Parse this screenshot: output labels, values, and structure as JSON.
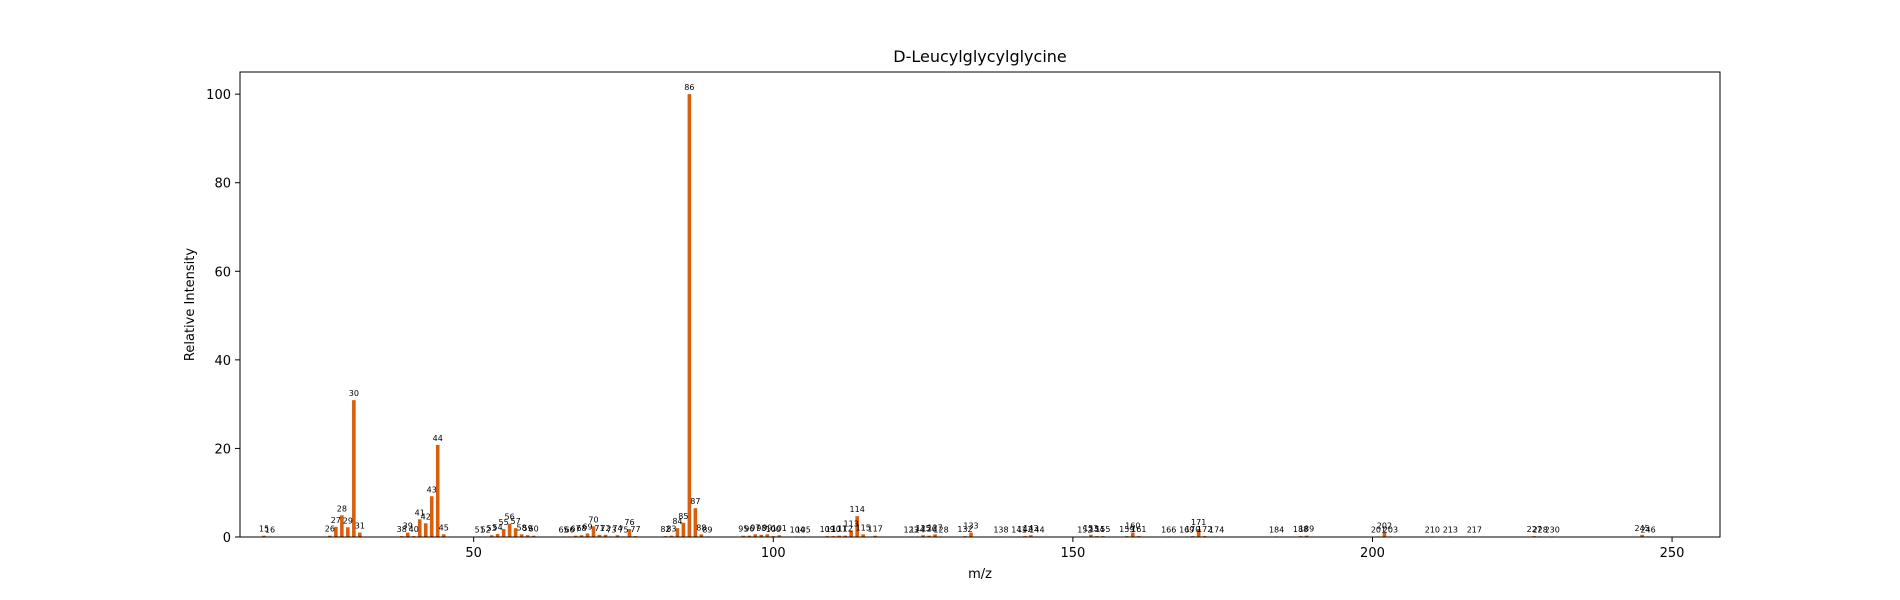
{
  "chart_data": {
    "type": "bar",
    "title": "D-Leucylglycylglycine",
    "xlabel": "m/z",
    "ylabel": "Relative Intensity",
    "xlim": [
      11,
      258
    ],
    "ylim": [
      0,
      105
    ],
    "xticks": [
      50,
      100,
      150,
      200,
      250
    ],
    "yticks": [
      0,
      20,
      40,
      60,
      80,
      100
    ],
    "grid": false,
    "bar_color": "#d95f0e",
    "peaks": [
      {
        "x": 15,
        "y": 0.3
      },
      {
        "x": 16,
        "y": 0.1
      },
      {
        "x": 26,
        "y": 0.3
      },
      {
        "x": 27,
        "y": 2.3
      },
      {
        "x": 28,
        "y": 4.9
      },
      {
        "x": 29,
        "y": 2.2
      },
      {
        "x": 30,
        "y": 30.9
      },
      {
        "x": 31,
        "y": 1.0
      },
      {
        "x": 38,
        "y": 0.2
      },
      {
        "x": 39,
        "y": 1.0
      },
      {
        "x": 40,
        "y": 0.2
      },
      {
        "x": 41,
        "y": 4.0
      },
      {
        "x": 42,
        "y": 3.1
      },
      {
        "x": 43,
        "y": 9.2
      },
      {
        "x": 44,
        "y": 20.8
      },
      {
        "x": 45,
        "y": 0.6
      },
      {
        "x": 51,
        "y": 0.1
      },
      {
        "x": 52,
        "y": 0.1
      },
      {
        "x": 53,
        "y": 0.4
      },
      {
        "x": 54,
        "y": 0.7
      },
      {
        "x": 55,
        "y": 1.8
      },
      {
        "x": 56,
        "y": 3.0
      },
      {
        "x": 57,
        "y": 2.0
      },
      {
        "x": 58,
        "y": 0.6
      },
      {
        "x": 59,
        "y": 0.4
      },
      {
        "x": 60,
        "y": 0.3
      },
      {
        "x": 65,
        "y": 0.1
      },
      {
        "x": 66,
        "y": 0.1
      },
      {
        "x": 67,
        "y": 0.3
      },
      {
        "x": 68,
        "y": 0.4
      },
      {
        "x": 69,
        "y": 0.8
      },
      {
        "x": 70,
        "y": 2.4
      },
      {
        "x": 71,
        "y": 0.5
      },
      {
        "x": 72,
        "y": 0.5
      },
      {
        "x": 73,
        "y": 0.1
      },
      {
        "x": 74,
        "y": 0.4
      },
      {
        "x": 75,
        "y": 0.1
      },
      {
        "x": 76,
        "y": 1.8
      },
      {
        "x": 77,
        "y": 0.2
      },
      {
        "x": 82,
        "y": 0.2
      },
      {
        "x": 83,
        "y": 0.3
      },
      {
        "x": 84,
        "y": 2.0
      },
      {
        "x": 85,
        "y": 3.2
      },
      {
        "x": 86,
        "y": 100
      },
      {
        "x": 87,
        "y": 6.5
      },
      {
        "x": 88,
        "y": 0.6
      },
      {
        "x": 89,
        "y": 0.1
      },
      {
        "x": 95,
        "y": 0.3
      },
      {
        "x": 96,
        "y": 0.3
      },
      {
        "x": 97,
        "y": 0.6
      },
      {
        "x": 98,
        "y": 0.5
      },
      {
        "x": 99,
        "y": 0.6
      },
      {
        "x": 100,
        "y": 0.2
      },
      {
        "x": 101,
        "y": 0.4
      },
      {
        "x": 104,
        "y": 0.1
      },
      {
        "x": 105,
        "y": 0.1
      },
      {
        "x": 109,
        "y": 0.2
      },
      {
        "x": 110,
        "y": 0.2
      },
      {
        "x": 111,
        "y": 0.3
      },
      {
        "x": 112,
        "y": 0.3
      },
      {
        "x": 113,
        "y": 1.5
      },
      {
        "x": 114,
        "y": 4.7
      },
      {
        "x": 115,
        "y": 0.6
      },
      {
        "x": 117,
        "y": 0.3
      },
      {
        "x": 123,
        "y": 0.1
      },
      {
        "x": 124,
        "y": 0.1
      },
      {
        "x": 125,
        "y": 0.4
      },
      {
        "x": 126,
        "y": 0.3
      },
      {
        "x": 127,
        "y": 0.6
      },
      {
        "x": 128,
        "y": 0.1
      },
      {
        "x": 132,
        "y": 0.2
      },
      {
        "x": 133,
        "y": 1.0
      },
      {
        "x": 138,
        "y": 0.1
      },
      {
        "x": 141,
        "y": 0.1
      },
      {
        "x": 142,
        "y": 0.2
      },
      {
        "x": 143,
        "y": 0.4
      },
      {
        "x": 144,
        "y": 0.1
      },
      {
        "x": 152,
        "y": 0.1
      },
      {
        "x": 153,
        "y": 0.5
      },
      {
        "x": 154,
        "y": 0.2
      },
      {
        "x": 155,
        "y": 0.2
      },
      {
        "x": 159,
        "y": 0.2
      },
      {
        "x": 160,
        "y": 1.0
      },
      {
        "x": 161,
        "y": 0.2
      },
      {
        "x": 166,
        "y": 0.1
      },
      {
        "x": 169,
        "y": 0.1
      },
      {
        "x": 170,
        "y": 0.2
      },
      {
        "x": 171,
        "y": 1.8
      },
      {
        "x": 172,
        "y": 0.2
      },
      {
        "x": 174,
        "y": 0.1
      },
      {
        "x": 184,
        "y": 0.1
      },
      {
        "x": 188,
        "y": 0.2
      },
      {
        "x": 189,
        "y": 0.3
      },
      {
        "x": 201,
        "y": 0.1
      },
      {
        "x": 202,
        "y": 1.0
      },
      {
        "x": 203,
        "y": 0.1
      },
      {
        "x": 210,
        "y": 0.1
      },
      {
        "x": 213,
        "y": 0.1
      },
      {
        "x": 217,
        "y": 0.1
      },
      {
        "x": 227,
        "y": 0.2
      },
      {
        "x": 228,
        "y": 0.1
      },
      {
        "x": 230,
        "y": 0.1
      },
      {
        "x": 245,
        "y": 0.5
      },
      {
        "x": 246,
        "y": 0.1
      }
    ]
  }
}
